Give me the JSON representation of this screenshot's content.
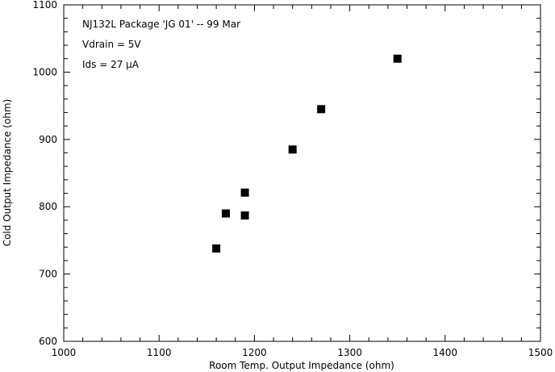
{
  "chart_data": {
    "type": "scatter",
    "annotations": [
      "NJ132L Package 'JG 01' -- 99 Mar",
      "Vdrain = 5V",
      "Ids = 27 μA"
    ],
    "xlabel": "Room Temp. Output Impedance (ohm)",
    "ylabel": "Cold Output Impedance (ohm)",
    "xlim": [
      1000,
      1500
    ],
    "ylim": [
      600,
      1100
    ],
    "xticks": [
      "1000",
      "1100",
      "1200",
      "1300",
      "1400",
      "1500"
    ],
    "yticks": [
      "600",
      "700",
      "800",
      "900",
      "1000",
      "1100"
    ],
    "grid": false,
    "marker": "filled-square",
    "color": "#000000",
    "points": [
      {
        "x": 1160,
        "y": 738
      },
      {
        "x": 1170,
        "y": 790
      },
      {
        "x": 1190,
        "y": 787
      },
      {
        "x": 1190,
        "y": 821
      },
      {
        "x": 1240,
        "y": 885
      },
      {
        "x": 1270,
        "y": 945
      },
      {
        "x": 1350,
        "y": 1020
      }
    ]
  }
}
